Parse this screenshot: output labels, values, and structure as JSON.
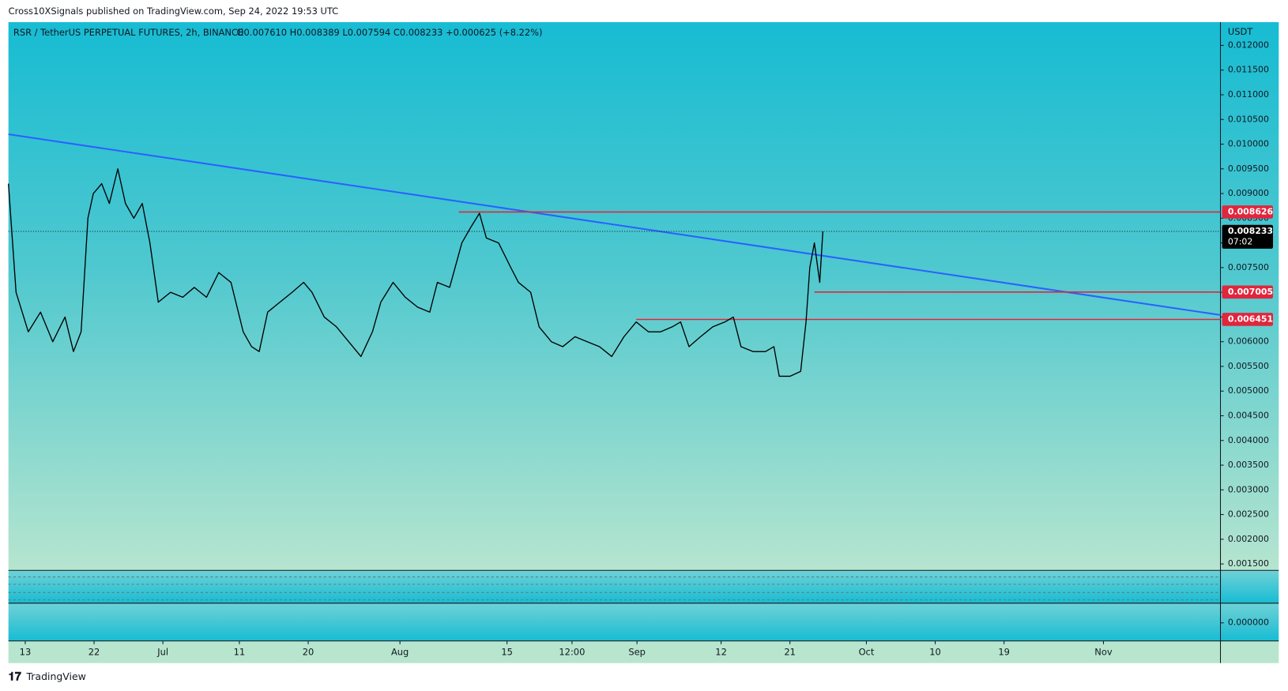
{
  "header": {
    "published": "Cross10XSignals published on TradingView.com, Sep 24, 2022 19:53 UTC"
  },
  "footer": {
    "brand": "TradingView"
  },
  "chart_data": {
    "type": "line",
    "title": "RSR / TetherUS PERPETUAL FUTURES, 2h, BINANCE",
    "ohlc": "O0.007610 H0.008389 L0.007594 C0.008233 +0.000625 (+8.22%)",
    "currency": "USDT",
    "color": "#000000",
    "x": [
      -2.2,
      -1.2,
      0.4,
      2.0,
      3.6,
      5.2,
      6.3,
      7.3,
      8.2,
      8.9,
      10.0,
      11.0,
      12.1,
      13.1,
      14.2,
      15.3,
      16.3,
      17.4,
      19.0,
      20.6,
      22.1,
      23.7,
      25.3,
      26.9,
      28.5,
      29.6,
      30.6,
      31.7,
      33.3,
      34.9,
      36.4,
      37.5,
      39.1,
      40.7,
      42.3,
      43.9,
      45.4,
      46.5,
      48.1,
      49.7,
      51.3,
      52.9,
      53.9,
      55.5,
      57.1,
      58.2,
      59.4,
      60.3,
      61.9,
      63.5,
      64.5,
      66.1,
      67.2,
      68.8,
      70.3,
      71.9,
      73.5,
      75.1,
      76.7,
      78.3,
      79.9,
      81.5,
      83.1,
      84.6,
      85.7,
      86.8,
      88.3,
      89.9,
      91.5,
      92.6,
      93.6,
      95.2,
      96.8,
      97.9,
      98.6,
      100.0,
      101.4,
      102.1,
      102.6,
      103.2,
      103.9,
      104.3
    ],
    "values": [
      0.0092,
      0.007,
      0.0062,
      0.0066,
      0.006,
      0.0065,
      0.0058,
      0.0062,
      0.0085,
      0.009,
      0.0092,
      0.0088,
      0.0095,
      0.0088,
      0.0085,
      0.0088,
      0.008,
      0.0068,
      0.007,
      0.0069,
      0.0071,
      0.0069,
      0.0074,
      0.0072,
      0.0062,
      0.0059,
      0.0058,
      0.0066,
      0.0068,
      0.007,
      0.0072,
      0.007,
      0.0065,
      0.0063,
      0.006,
      0.0057,
      0.0062,
      0.0068,
      0.0072,
      0.0069,
      0.0067,
      0.0066,
      0.0072,
      0.0071,
      0.008,
      0.0083,
      0.0086,
      0.0081,
      0.008,
      0.0075,
      0.0072,
      0.007,
      0.0063,
      0.006,
      0.0059,
      0.0061,
      0.006,
      0.0059,
      0.0057,
      0.0061,
      0.0064,
      0.0062,
      0.0062,
      0.0063,
      0.0064,
      0.0059,
      0.0061,
      0.0063,
      0.0064,
      0.0065,
      0.0059,
      0.0058,
      0.0058,
      0.0059,
      0.0053,
      0.0053,
      0.0054,
      0.0064,
      0.0075,
      0.008,
      0.0072,
      0.008233
    ],
    "xlim": [
      -2.2,
      156.3
    ],
    "ylim": [
      0.00137,
      0.01242
    ],
    "xticks": [
      {
        "value": 0,
        "label": "13"
      },
      {
        "value": 9,
        "label": "22"
      },
      {
        "value": 18,
        "label": "Jul"
      },
      {
        "value": 28,
        "label": "11"
      },
      {
        "value": 37,
        "label": "20"
      },
      {
        "value": 49,
        "label": "Aug"
      },
      {
        "value": 63,
        "label": "15"
      },
      {
        "value": 71.5,
        "label": "12:00"
      },
      {
        "value": 80,
        "label": "Sep"
      },
      {
        "value": 91,
        "label": "12"
      },
      {
        "value": 100,
        "label": "21"
      },
      {
        "value": 110,
        "label": "Oct"
      },
      {
        "value": 119,
        "label": "10"
      },
      {
        "value": 128,
        "label": "19"
      },
      {
        "value": 141,
        "label": "Nov"
      }
    ],
    "yticks": [
      {
        "value": 0.0015,
        "label": "0.001500"
      },
      {
        "value": 0.002,
        "label": "0.002000"
      },
      {
        "value": 0.0025,
        "label": "0.002500"
      },
      {
        "value": 0.003,
        "label": "0.003000"
      },
      {
        "value": 0.0035,
        "label": "0.003500"
      },
      {
        "value": 0.004,
        "label": "0.004000"
      },
      {
        "value": 0.0045,
        "label": "0.004500"
      },
      {
        "value": 0.005,
        "label": "0.005000"
      },
      {
        "value": 0.0055,
        "label": "0.005500"
      },
      {
        "value": 0.006,
        "label": "0.006000"
      },
      {
        "value": 0.0065,
        "label": "0.006500"
      },
      {
        "value": 0.007,
        "label": "0.007000"
      },
      {
        "value": 0.0075,
        "label": "0.007500"
      },
      {
        "value": 0.008,
        "label": "0.008000"
      },
      {
        "value": 0.0085,
        "label": "0.008500"
      },
      {
        "value": 0.009,
        "label": "0.009000"
      },
      {
        "value": 0.0095,
        "label": "0.009500"
      },
      {
        "value": 0.01,
        "label": "0.010000"
      },
      {
        "value": 0.0105,
        "label": "0.010500"
      },
      {
        "value": 0.011,
        "label": "0.011000"
      },
      {
        "value": 0.0115,
        "label": "0.011500"
      },
      {
        "value": 0.012,
        "label": "0.012000"
      }
    ],
    "levels": [
      {
        "value": 0.008626,
        "from": 56.7,
        "color": "#e0263d"
      },
      {
        "value": 0.007005,
        "from": 103.2,
        "color": "#e0263d"
      },
      {
        "value": 0.006451,
        "from": 79.9,
        "color": "#e0263d"
      }
    ],
    "trendline": {
      "x": [
        -2.2,
        156.3
      ],
      "values": [
        0.0102,
        0.00654
      ],
      "color": "#2962ff"
    },
    "last_price": 0.008233,
    "countdown": "07:02",
    "indicator_ticks": [
      {
        "value": 0,
        "label": "0.000000"
      }
    ]
  }
}
